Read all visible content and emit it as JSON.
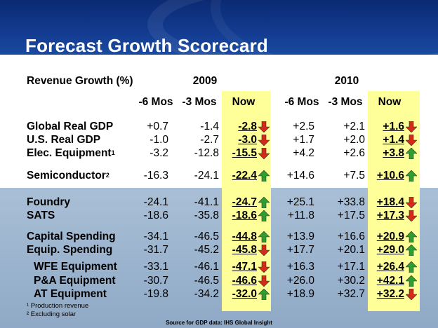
{
  "title": "Forecast Growth Scorecard",
  "header": {
    "label": "Revenue Growth (%)",
    "year_2009": "2009",
    "year_2010": "2010",
    "col_6mos": "-6 Mos",
    "col_3mos": "-3 Mos",
    "col_now": "Now"
  },
  "rows": [
    {
      "label": "Global Real GDP",
      "sup": "",
      "indent": false,
      "v2009": [
        "+0.7",
        "-1.4",
        "-2.8"
      ],
      "a2009": "down",
      "v2010": [
        "+2.5",
        "+2.1",
        "+1.6"
      ],
      "a2010": "down"
    },
    {
      "label": "U.S. Real GDP",
      "sup": "",
      "indent": false,
      "v2009": [
        "-1.0",
        "-2.7",
        "-3.0"
      ],
      "a2009": "down",
      "v2010": [
        "+1.7",
        "+2.0",
        "+1.4"
      ],
      "a2010": "down"
    },
    {
      "label": "Elec. Equipment",
      "sup": "1",
      "indent": false,
      "v2009": [
        "-3.2",
        "-12.8",
        "-15.5"
      ],
      "a2009": "down",
      "v2010": [
        "+4.2",
        "+2.6",
        "+3.8"
      ],
      "a2010": "up"
    },
    {
      "label": "Semiconductor",
      "sup": "2",
      "indent": false,
      "v2009": [
        "-16.3",
        "-24.1",
        "-22.4"
      ],
      "a2009": "up",
      "v2010": [
        "+14.6",
        "+7.5",
        "+10.6"
      ],
      "a2010": "up"
    },
    {
      "label": "Foundry",
      "sup": "",
      "indent": false,
      "v2009": [
        "-24.1",
        "-41.1",
        "-24.7"
      ],
      "a2009": "up",
      "v2010": [
        "+25.1",
        "+33.8",
        "+18.4"
      ],
      "a2010": "down"
    },
    {
      "label": "SATS",
      "sup": "",
      "indent": false,
      "v2009": [
        "-18.6",
        "-35.8",
        "-18.6"
      ],
      "a2009": "up",
      "v2010": [
        "+11.8",
        "+17.5",
        "+17.3"
      ],
      "a2010": "down"
    },
    {
      "label": "Capital Spending",
      "sup": "",
      "indent": false,
      "v2009": [
        "-34.1",
        "-46.5",
        "-44.8"
      ],
      "a2009": "up",
      "v2010": [
        "+13.9",
        "+16.6",
        "+20.9"
      ],
      "a2010": "up"
    },
    {
      "label": "Equip. Spending",
      "sup": "",
      "indent": false,
      "v2009": [
        "-31.7",
        "-45.2",
        "-45.8"
      ],
      "a2009": "down",
      "v2010": [
        "+17.7",
        "+20.1",
        "+29.0"
      ],
      "a2010": "up"
    },
    {
      "label": "WFE Equipment",
      "sup": "",
      "indent": true,
      "v2009": [
        "-33.1",
        "-46.1",
        "-47.1"
      ],
      "a2009": "down",
      "v2010": [
        "+16.3",
        "+17.1",
        "+26.4"
      ],
      "a2010": "up"
    },
    {
      "label": "P&A Equipment",
      "sup": "",
      "indent": true,
      "v2009": [
        "-30.7",
        "-46.5",
        "-46.6"
      ],
      "a2009": "down",
      "v2010": [
        "+26.0",
        "+30.2",
        "+42.1"
      ],
      "a2010": "up"
    },
    {
      "label": "AT Equipment",
      "sup": "",
      "indent": true,
      "v2009": [
        "-19.8",
        "-34.2",
        "-32.0"
      ],
      "a2009": "up",
      "v2010": [
        "+18.9",
        "+32.7",
        "+32.2"
      ],
      "a2010": "down"
    }
  ],
  "footnotes": [
    "¹ Production revenue",
    "² Excluding solar"
  ],
  "source": "Source for GDP data: IHS Global Insight",
  "colors": {
    "up": "#2e9e2e",
    "down": "#d42a16",
    "highlight": "#ffff99",
    "header": "#123a8e",
    "lower_band": "#9cb4ce"
  }
}
